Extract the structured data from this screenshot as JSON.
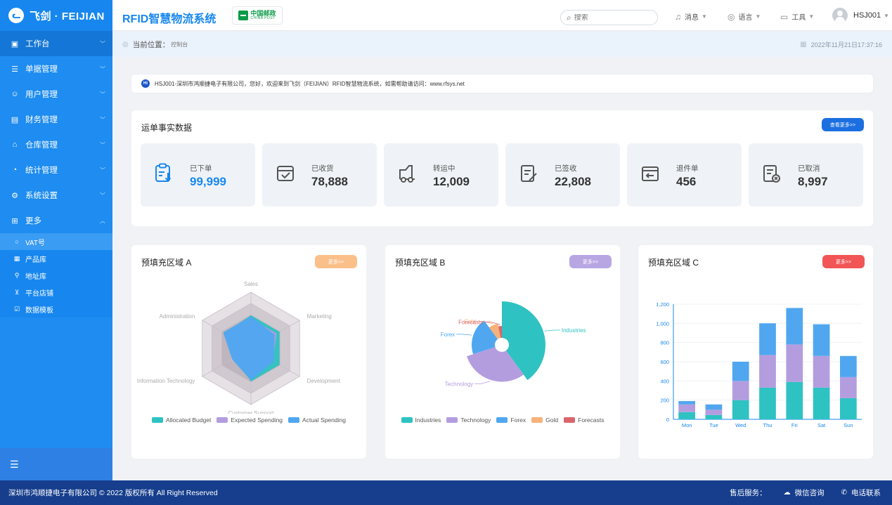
{
  "header": {
    "logo_icon": "fei-logo",
    "logo_text": "飞剑 · FEIJIAN",
    "system_title": "RFID智慧物流系统",
    "partner_logo_cn": "中国邮政",
    "partner_logo_en": "CHINA POST",
    "search_placeholder": "搜索",
    "tools": [
      {
        "label": "消息",
        "icon": "bell-icon"
      },
      {
        "label": "语言",
        "icon": "globe-icon"
      },
      {
        "label": "工具",
        "icon": "toolbox-icon"
      }
    ],
    "user_name": "HSJ001"
  },
  "sidebar": {
    "items": [
      {
        "label": "工作台",
        "icon": "monitor-icon",
        "active": true
      },
      {
        "label": "单据管理",
        "icon": "document-icon"
      },
      {
        "label": "用户管理",
        "icon": "users-icon"
      },
      {
        "label": "财务管理",
        "icon": "finance-icon"
      },
      {
        "label": "仓库管理",
        "icon": "warehouse-icon"
      },
      {
        "label": "统计管理",
        "icon": "pie-icon"
      },
      {
        "label": "系统设置",
        "icon": "settings-icon"
      },
      {
        "label": "更多",
        "icon": "grid-icon",
        "expanded": true
      }
    ],
    "sub_items": [
      {
        "label": "VAT号",
        "icon": "circle-icon",
        "active": true
      },
      {
        "label": "产品库",
        "icon": "product-icon"
      },
      {
        "label": "地址库",
        "icon": "address-icon"
      },
      {
        "label": "平台店铺",
        "icon": "shop-icon"
      },
      {
        "label": "数据模板",
        "icon": "template-icon"
      }
    ],
    "collapse_icon": "collapse-menu-icon"
  },
  "breadcrumb": {
    "label": "当前位置：",
    "current": "控制台",
    "datetime": "2022年11月21日17:37:16"
  },
  "notice": {
    "text": "HSJ001-深圳市鸿顺捷电子有限公司，您好，欢迎来到飞剑（FEIJIAN）RFID智慧物流系统，如需帮助请访问：www.rfsys.net"
  },
  "stats": {
    "title": "运单事实数据",
    "more_label": "查看更多>>",
    "items": [
      {
        "label": "已下单",
        "value": "99,999",
        "icon": "order-icon",
        "highlight": true
      },
      {
        "label": "已收货",
        "value": "78,888",
        "icon": "received-icon"
      },
      {
        "label": "转运中",
        "value": "12,009",
        "icon": "truck-icon"
      },
      {
        "label": "已签收",
        "value": "22,808",
        "icon": "signed-icon"
      },
      {
        "label": "退件单",
        "value": "456",
        "icon": "return-icon"
      },
      {
        "label": "已取消",
        "value": "8,997",
        "icon": "cancel-icon"
      }
    ]
  },
  "panels": [
    {
      "title": "预填充区域 A",
      "more_label": "更多>>",
      "color": "#fbbf8a"
    },
    {
      "title": "预填充区域 B",
      "more_label": "更多>>",
      "color": "#b8a6e3"
    },
    {
      "title": "预填充区域 C",
      "more_label": "更多>>",
      "color": "#f25555"
    }
  ],
  "chart_data": [
    {
      "type": "radar",
      "indicators": [
        "Sales",
        "Marketing",
        "Development",
        "Customer Support",
        "Information Technology",
        "Administration"
      ],
      "series": [
        {
          "name": "Allocated Budget",
          "color": "#2fc2c2",
          "values": [
            0.58,
            0.58,
            0.58,
            0.58,
            0.3,
            0.54
          ]
        },
        {
          "name": "Expected Spending",
          "color": "#b39ddf",
          "values": [
            0.52,
            0.52,
            0.44,
            0.5,
            0.3,
            0.52
          ]
        },
        {
          "name": "Actual Spending",
          "color": "#50a7f0",
          "values": [
            0.56,
            0.48,
            0.46,
            0.56,
            0.38,
            0.56
          ]
        }
      ],
      "max": 1
    },
    {
      "type": "pie",
      "rose": true,
      "slices": [
        {
          "name": "Industries",
          "value": 40,
          "color": "#2fc2c2"
        },
        {
          "name": "Technology",
          "value": 30,
          "color": "#b39ddf"
        },
        {
          "name": "Forex",
          "value": 20,
          "color": "#50a7f0"
        },
        {
          "name": "Gold",
          "value": 7,
          "color": "#f7b27a"
        },
        {
          "name": "Forecasts",
          "value": 3,
          "color": "#d9666b"
        }
      ]
    },
    {
      "type": "bar",
      "stacked": true,
      "categories": [
        "Mon",
        "Tue",
        "Wed",
        "Thu",
        "Fri",
        "Sat",
        "Sun"
      ],
      "ylim": [
        0,
        1200
      ],
      "yticks": [
        0,
        200,
        400,
        600,
        800,
        1000,
        1200
      ],
      "ytick_labels": [
        "0",
        "200",
        "400",
        "600",
        "800",
        "1,000",
        "1,200"
      ],
      "series": [
        {
          "color": "#2fc2c2",
          "values": [
            75,
            45,
            200,
            330,
            390,
            330,
            220
          ]
        },
        {
          "color": "#b39ddf",
          "values": [
            80,
            55,
            200,
            340,
            390,
            330,
            220
          ]
        },
        {
          "color": "#50a7f0",
          "values": [
            35,
            55,
            200,
            330,
            380,
            330,
            220
          ]
        }
      ]
    }
  ],
  "footer": {
    "copyright": "深圳市鸿顺捷电子有限公司 © 2022 版权所有 All Right Reserved",
    "service_label": "售后服务：",
    "wechat_label": "微信咨询",
    "phone_label": "电话联系"
  }
}
